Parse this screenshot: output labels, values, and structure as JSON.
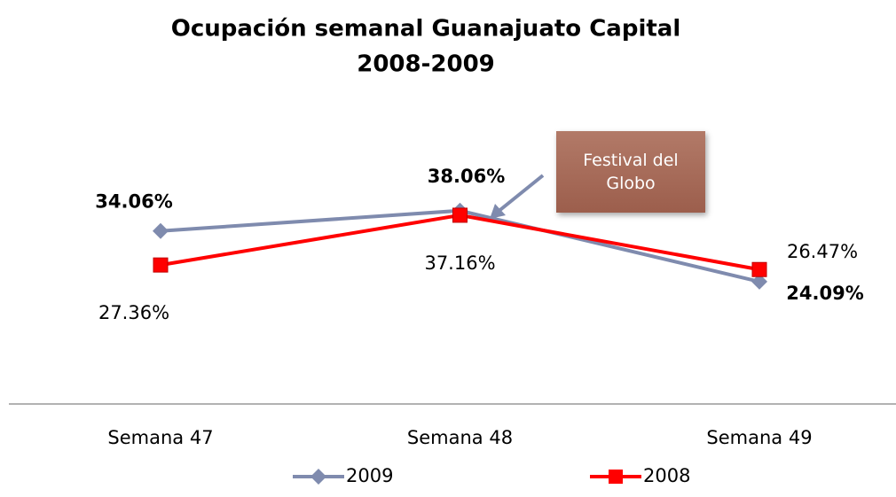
{
  "chart_data": {
    "type": "line",
    "title": "Ocupación semanal Guanajuato Capital",
    "subtitle": "2008-2009",
    "categories": [
      "Semana 47",
      "Semana 48",
      "Semana 49"
    ],
    "series": [
      {
        "name": "2009",
        "color": "#7f8bae",
        "values": [
          34.06,
          38.06,
          24.09
        ],
        "value_labels": [
          "34.06%",
          "38.06%",
          "24.09%"
        ]
      },
      {
        "name": "2008",
        "color": "#ff0000",
        "values": [
          27.36,
          37.16,
          26.47
        ],
        "value_labels": [
          "27.36%",
          "37.16%",
          "26.47%"
        ]
      }
    ],
    "ylim": [
      0,
      60
    ],
    "annotation": "Festival del Globo",
    "legend": "bottom"
  }
}
